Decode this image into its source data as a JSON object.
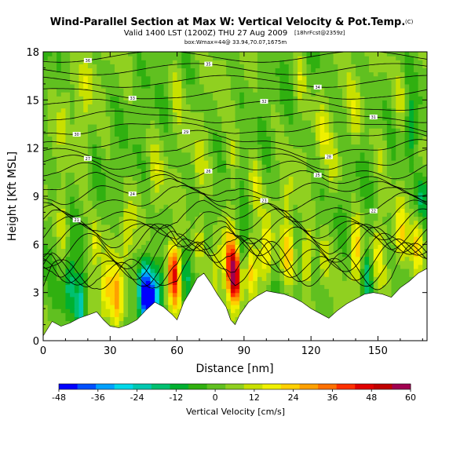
{
  "chart_data": {
    "type": "heatmap",
    "title": "Wind-Parallel Section at Max W: Vertical Velocity & Pot.Temp.",
    "title_mark": "(C)",
    "subtitle_main": "Valid 1400 LST (1200Z) THU 27 Aug 2009",
    "subtitle_small": "[18hrFcst@2359z]",
    "location": "box:Wmax=44@ 33.94,70.07,1675m",
    "xlabel": "Distance [nm]",
    "ylabel": "Height [Kft MSL]",
    "xlim": [
      0,
      172
    ],
    "ylim": [
      0,
      18
    ],
    "x_ticks": [
      0,
      30,
      60,
      90,
      120,
      150
    ],
    "y_ticks": [
      0,
      3,
      6,
      9,
      12,
      15,
      18
    ],
    "colorbar": {
      "label": "Vertical Velocity [cm/s]",
      "ticks": [
        -48,
        -36,
        -24,
        -12,
        0,
        12,
        24,
        36,
        48,
        60
      ],
      "range": [
        -48,
        60
      ],
      "colors": [
        "#0000ff",
        "#0050ff",
        "#00a0ff",
        "#00d8e8",
        "#00c8b0",
        "#00c070",
        "#00b030",
        "#30b010",
        "#60c020",
        "#90d020",
        "#c8e000",
        "#f0f000",
        "#ffd000",
        "#ffa000",
        "#ff7000",
        "#ff3000",
        "#e00000",
        "#c00000",
        "#a00050"
      ]
    },
    "terrain": [
      [
        0,
        0.3
      ],
      [
        4,
        1.2
      ],
      [
        8,
        0.9
      ],
      [
        12,
        1.1
      ],
      [
        16,
        1.4
      ],
      [
        20,
        1.6
      ],
      [
        24,
        1.8
      ],
      [
        27,
        1.3
      ],
      [
        30,
        0.9
      ],
      [
        34,
        0.8
      ],
      [
        38,
        1.0
      ],
      [
        42,
        1.3
      ],
      [
        46,
        1.9
      ],
      [
        50,
        2.4
      ],
      [
        54,
        2.1
      ],
      [
        58,
        1.6
      ],
      [
        60,
        1.3
      ],
      [
        63,
        2.4
      ],
      [
        66,
        3.1
      ],
      [
        69,
        3.9
      ],
      [
        72,
        4.2
      ],
      [
        75,
        3.6
      ],
      [
        78,
        2.9
      ],
      [
        82,
        2.1
      ],
      [
        84,
        1.3
      ],
      [
        86,
        1.0
      ],
      [
        88,
        1.6
      ],
      [
        92,
        2.4
      ],
      [
        96,
        2.8
      ],
      [
        100,
        3.1
      ],
      [
        104,
        3.0
      ],
      [
        108,
        2.9
      ],
      [
        112,
        2.7
      ],
      [
        116,
        2.4
      ],
      [
        120,
        2.0
      ],
      [
        124,
        1.7
      ],
      [
        128,
        1.4
      ],
      [
        132,
        1.9
      ],
      [
        136,
        2.3
      ],
      [
        140,
        2.6
      ],
      [
        144,
        2.9
      ],
      [
        148,
        3.0
      ],
      [
        152,
        2.9
      ],
      [
        156,
        2.7
      ],
      [
        160,
        3.3
      ],
      [
        164,
        3.7
      ],
      [
        168,
        4.2
      ],
      [
        172,
        4.5
      ]
    ],
    "velocity_features": [
      {
        "x": 9,
        "y": 7.5,
        "w": 12
      },
      {
        "x": 12,
        "y": 3.5,
        "w": -20
      },
      {
        "x": 17,
        "y": 2.2,
        "w": -28
      },
      {
        "x": 23,
        "y": 6.0,
        "w": 14
      },
      {
        "x": 28,
        "y": 3.0,
        "w": 20
      },
      {
        "x": 33,
        "y": 2.5,
        "w": 24
      },
      {
        "x": 37,
        "y": 6.5,
        "w": 14
      },
      {
        "x": 45,
        "y": 3.0,
        "w": -36
      },
      {
        "x": 48,
        "y": 2.5,
        "w": -44
      },
      {
        "x": 52,
        "y": 3.5,
        "w": -18
      },
      {
        "x": 58,
        "y": 4.5,
        "w": 36
      },
      {
        "x": 60,
        "y": 3.5,
        "w": 28
      },
      {
        "x": 64,
        "y": 4.0,
        "w": -16
      },
      {
        "x": 70,
        "y": 6.5,
        "w": 14
      },
      {
        "x": 78,
        "y": 5.5,
        "w": 12
      },
      {
        "x": 83,
        "y": 5.0,
        "w": 30
      },
      {
        "x": 86,
        "y": 4.0,
        "w": 52
      },
      {
        "x": 89,
        "y": 5.5,
        "w": -18
      },
      {
        "x": 93,
        "y": 4.5,
        "w": 18
      },
      {
        "x": 100,
        "y": 5.5,
        "w": 20
      },
      {
        "x": 110,
        "y": 5.5,
        "w": 22
      },
      {
        "x": 118,
        "y": 5.0,
        "w": 18
      },
      {
        "x": 126,
        "y": 5.0,
        "w": 14
      },
      {
        "x": 140,
        "y": 5.5,
        "w": 22
      },
      {
        "x": 145,
        "y": 4.0,
        "w": -22
      },
      {
        "x": 150,
        "y": 5.5,
        "w": 12
      },
      {
        "x": 160,
        "y": 6.5,
        "w": 16
      },
      {
        "x": 168,
        "y": 6.0,
        "w": 24
      },
      {
        "x": 170,
        "y": 9.0,
        "w": -20
      },
      {
        "x": 165,
        "y": 13.0,
        "w": -14
      },
      {
        "x": 160,
        "y": 15.5,
        "w": 10
      },
      {
        "x": 152,
        "y": 12.0,
        "w": 8
      },
      {
        "x": 140,
        "y": 14.0,
        "w": 10
      },
      {
        "x": 125,
        "y": 13.0,
        "w": 9
      },
      {
        "x": 110,
        "y": 9.0,
        "w": 8
      },
      {
        "x": 95,
        "y": 10.0,
        "w": 9
      },
      {
        "x": 85,
        "y": 11.0,
        "w": 10
      },
      {
        "x": 70,
        "y": 10.5,
        "w": 8
      },
      {
        "x": 50,
        "y": 10.5,
        "w": 8
      },
      {
        "x": 10,
        "y": 14.5,
        "w": 9
      },
      {
        "x": 20,
        "y": 16.5,
        "w": 10
      },
      {
        "x": 60,
        "y": 15.5,
        "w": 9
      },
      {
        "x": 115,
        "y": 16.5,
        "w": 10
      },
      {
        "x": 18,
        "y": 12.5,
        "w": 7
      },
      {
        "x": 130,
        "y": 11.0,
        "w": 8
      }
    ],
    "isentropes": {
      "count": 24,
      "base_height": 3.2,
      "top_height": 17.7,
      "contour_labels": [
        "36",
        "35",
        "34",
        "33",
        "32",
        "31",
        "30",
        "29",
        "28",
        "27",
        "26",
        "25",
        "24",
        "23",
        "22",
        "21"
      ]
    }
  }
}
